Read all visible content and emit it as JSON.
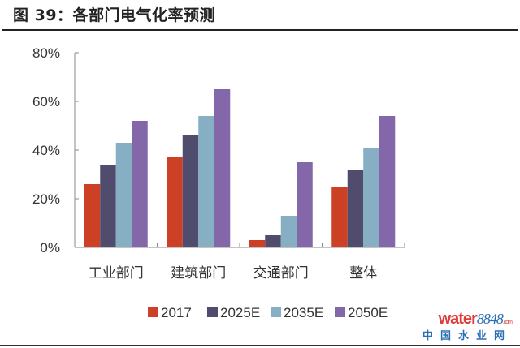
{
  "header": {
    "title": "图 39：各部门电气化率预测"
  },
  "watermark": {
    "logo_text": "water",
    "logo_number": "8848",
    "logo_suffix": ".com",
    "subtitle": "中国水业网"
  },
  "chart_data": {
    "type": "bar",
    "title": "图 39：各部门电气化率预测",
    "xlabel": "",
    "ylabel": "",
    "ylim": [
      0,
      80
    ],
    "yticks": [
      0,
      20,
      40,
      60,
      80
    ],
    "ytick_labels": [
      "0%",
      "20%",
      "40%",
      "60%",
      "80%"
    ],
    "categories": [
      "工业部门",
      "建筑部门",
      "交通部门",
      "整体"
    ],
    "series": [
      {
        "name": "2017",
        "color": "#cc4125",
        "values": [
          26,
          37,
          3,
          25
        ]
      },
      {
        "name": "2025E",
        "color": "#4f4c6e",
        "values": [
          34,
          46,
          5,
          32
        ]
      },
      {
        "name": "2035E",
        "color": "#86afc4",
        "values": [
          43,
          54,
          13,
          41
        ]
      },
      {
        "name": "2050E",
        "color": "#8367a8",
        "values": [
          52,
          65,
          35,
          54
        ]
      }
    ],
    "grid": false,
    "legend": "bottom"
  }
}
